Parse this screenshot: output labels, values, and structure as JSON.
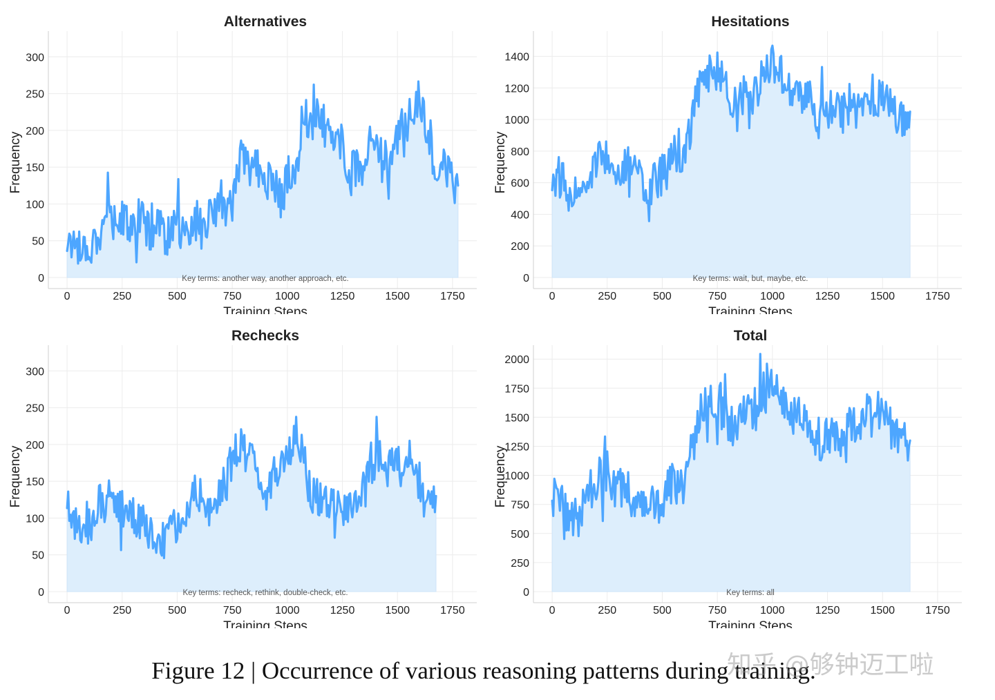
{
  "figure": {
    "caption": "Figure 12 | Occurrence of various reasoning patterns during training.",
    "watermark": "知乎 @够钟迈工啦",
    "line_color": "#4da6ff",
    "fill_color": "#ddeefc"
  },
  "chart_data": [
    {
      "type": "area",
      "title": "Alternatives",
      "xlabel": "Training Steps",
      "ylabel": "Frequency",
      "xlim": [
        -85,
        1860
      ],
      "ylim": [
        -15,
        335
      ],
      "xticks": [
        0,
        250,
        500,
        750,
        1000,
        1250,
        1500,
        1750
      ],
      "yticks": [
        0,
        50,
        100,
        150,
        200,
        250,
        300
      ],
      "annotation": "Key terms: another way, another approach, etc.",
      "series": [
        {
          "name": "Alternatives",
          "x_step": 25,
          "values": [
            50,
            45,
            40,
            42,
            40,
            52,
            60,
            78,
            88,
            90,
            80,
            70,
            72,
            85,
            75,
            60,
            70,
            75,
            55,
            60,
            72,
            60,
            55,
            75,
            80,
            70,
            85,
            90,
            85,
            100,
            88,
            150,
            170,
            140,
            165,
            135,
            130,
            135,
            120,
            105,
            140,
            130,
            170,
            235,
            205,
            215,
            220,
            200,
            190,
            210,
            205,
            120,
            150,
            145,
            135,
            175,
            185,
            170,
            160,
            150,
            190,
            215,
            205,
            230,
            245,
            210,
            195,
            120,
            165,
            145,
            130,
            125
          ]
        }
      ]
    },
    {
      "type": "area",
      "title": "Hesitations",
      "xlabel": "Training Steps",
      "ylabel": "Frequency",
      "xlim": [
        -85,
        1860
      ],
      "ylim": [
        -70,
        1560
      ],
      "xticks": [
        0,
        250,
        500,
        750,
        1000,
        1250,
        1500,
        1750
      ],
      "yticks": [
        0,
        200,
        400,
        600,
        800,
        1000,
        1200,
        1400
      ],
      "annotation": "Key terms: wait, but, maybe, etc.",
      "series": [
        {
          "name": "Hesitations",
          "x_step": 25,
          "values": [
            600,
            650,
            600,
            520,
            490,
            510,
            560,
            650,
            720,
            780,
            790,
            740,
            700,
            720,
            700,
            650,
            620,
            600,
            590,
            610,
            650,
            740,
            790,
            700,
            750,
            930,
            1100,
            1250,
            1300,
            1300,
            1300,
            1250,
            1150,
            1120,
            1100,
            1200,
            1230,
            1150,
            1250,
            1300,
            1350,
            1330,
            1250,
            1230,
            1170,
            1150,
            1180,
            1100,
            1050,
            1020,
            1070,
            1080,
            1050,
            1040,
            1100,
            1060,
            1080,
            1120,
            1150,
            1130,
            1150,
            1100,
            1060,
            1020,
            1000,
            1050
          ]
        }
      ]
    },
    {
      "type": "area",
      "title": "Rechecks",
      "xlabel": "Training Steps",
      "ylabel": "Frequency",
      "xlim": [
        -85,
        1860
      ],
      "ylim": [
        -15,
        335
      ],
      "xticks": [
        0,
        250,
        500,
        750,
        1000,
        1250,
        1500,
        1750
      ],
      "yticks": [
        0,
        50,
        100,
        150,
        200,
        250,
        300
      ],
      "annotation": "Key terms: recheck, rethink, double-check, etc.",
      "series": [
        {
          "name": "Rechecks",
          "x_step": 25,
          "values": [
            120,
            100,
            80,
            75,
            95,
            100,
            125,
            120,
            130,
            120,
            115,
            110,
            100,
            95,
            90,
            80,
            75,
            65,
            70,
            80,
            90,
            110,
            120,
            140,
            130,
            110,
            100,
            120,
            140,
            150,
            185,
            200,
            190,
            180,
            170,
            150,
            130,
            150,
            160,
            170,
            180,
            205,
            215,
            170,
            140,
            130,
            125,
            120,
            130,
            125,
            115,
            120,
            110,
            130,
            150,
            170,
            180,
            190,
            160,
            170,
            185,
            180,
            190,
            150,
            140,
            120,
            110,
            130
          ]
        }
      ]
    },
    {
      "type": "area",
      "title": "Total",
      "xlabel": "Training Steps",
      "ylabel": "Frequency",
      "xlim": [
        -85,
        1860
      ],
      "ylim": [
        -95,
        2120
      ],
      "xticks": [
        0,
        250,
        500,
        750,
        1000,
        1250,
        1500,
        1750
      ],
      "yticks": [
        0,
        250,
        500,
        750,
        1000,
        1250,
        1500,
        1750,
        2000
      ],
      "annotation": "Key terms: all",
      "series": [
        {
          "name": "Total",
          "x_step": 25,
          "values": [
            800,
            820,
            740,
            650,
            620,
            660,
            740,
            860,
            950,
            1000,
            980,
            930,
            880,
            870,
            850,
            790,
            760,
            730,
            720,
            740,
            800,
            900,
            960,
            880,
            950,
            1150,
            1350,
            1600,
            1650,
            1640,
            1650,
            1600,
            1450,
            1420,
            1440,
            1560,
            1580,
            1530,
            1640,
            1700,
            1780,
            1760,
            1620,
            1580,
            1520,
            1480,
            1480,
            1430,
            1330,
            1300,
            1330,
            1340,
            1320,
            1350,
            1420,
            1400,
            1460,
            1560,
            1600,
            1580,
            1580,
            1500,
            1380,
            1320,
            1280,
            1300
          ]
        }
      ]
    }
  ]
}
